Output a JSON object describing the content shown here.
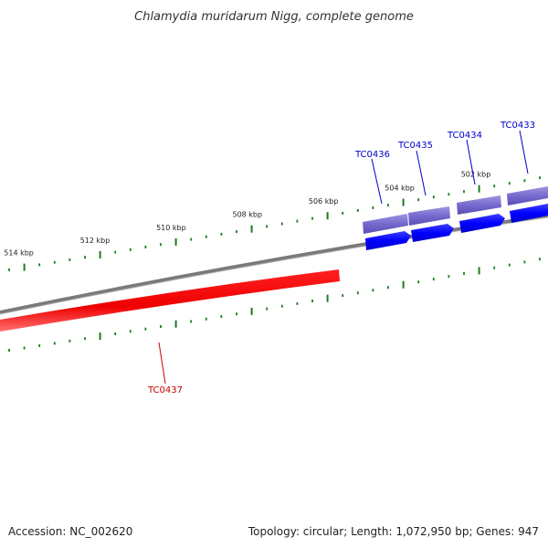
{
  "title": "Chlamydia muridarum Nigg, complete genome",
  "footer": {
    "accession": "Accession: NC_002620",
    "summary": "Topology: circular; Length: 1,072,950 bp; Genes: 947"
  },
  "ticks": [
    {
      "kbp": 502,
      "label": "502 kbp"
    },
    {
      "kbp": 504,
      "label": "504 kbp"
    },
    {
      "kbp": 506,
      "label": "506 kbp"
    },
    {
      "kbp": 508,
      "label": "508 kbp"
    },
    {
      "kbp": 510,
      "label": "510 kbp"
    },
    {
      "kbp": 512,
      "label": "512 kbp"
    },
    {
      "kbp": 514,
      "label": "514 kbp"
    }
  ],
  "genes": [
    {
      "name": "TC0433",
      "strand": "forward",
      "color": "#0000cc"
    },
    {
      "name": "TC0434",
      "strand": "forward",
      "color": "#0000cc"
    },
    {
      "name": "TC0435",
      "strand": "forward",
      "color": "#0000cc"
    },
    {
      "name": "TC0436",
      "strand": "forward",
      "color": "#0000cc"
    },
    {
      "name": "TC0437",
      "strand": "reverse",
      "color": "#cc0000"
    }
  ],
  "colors": {
    "backbone": "#7a7a7a",
    "forward_feature": "#0000ff",
    "forward_cds": "#6a5acd",
    "reverse_feature": "#ee0000",
    "ticks": "#1f7a1f"
  }
}
